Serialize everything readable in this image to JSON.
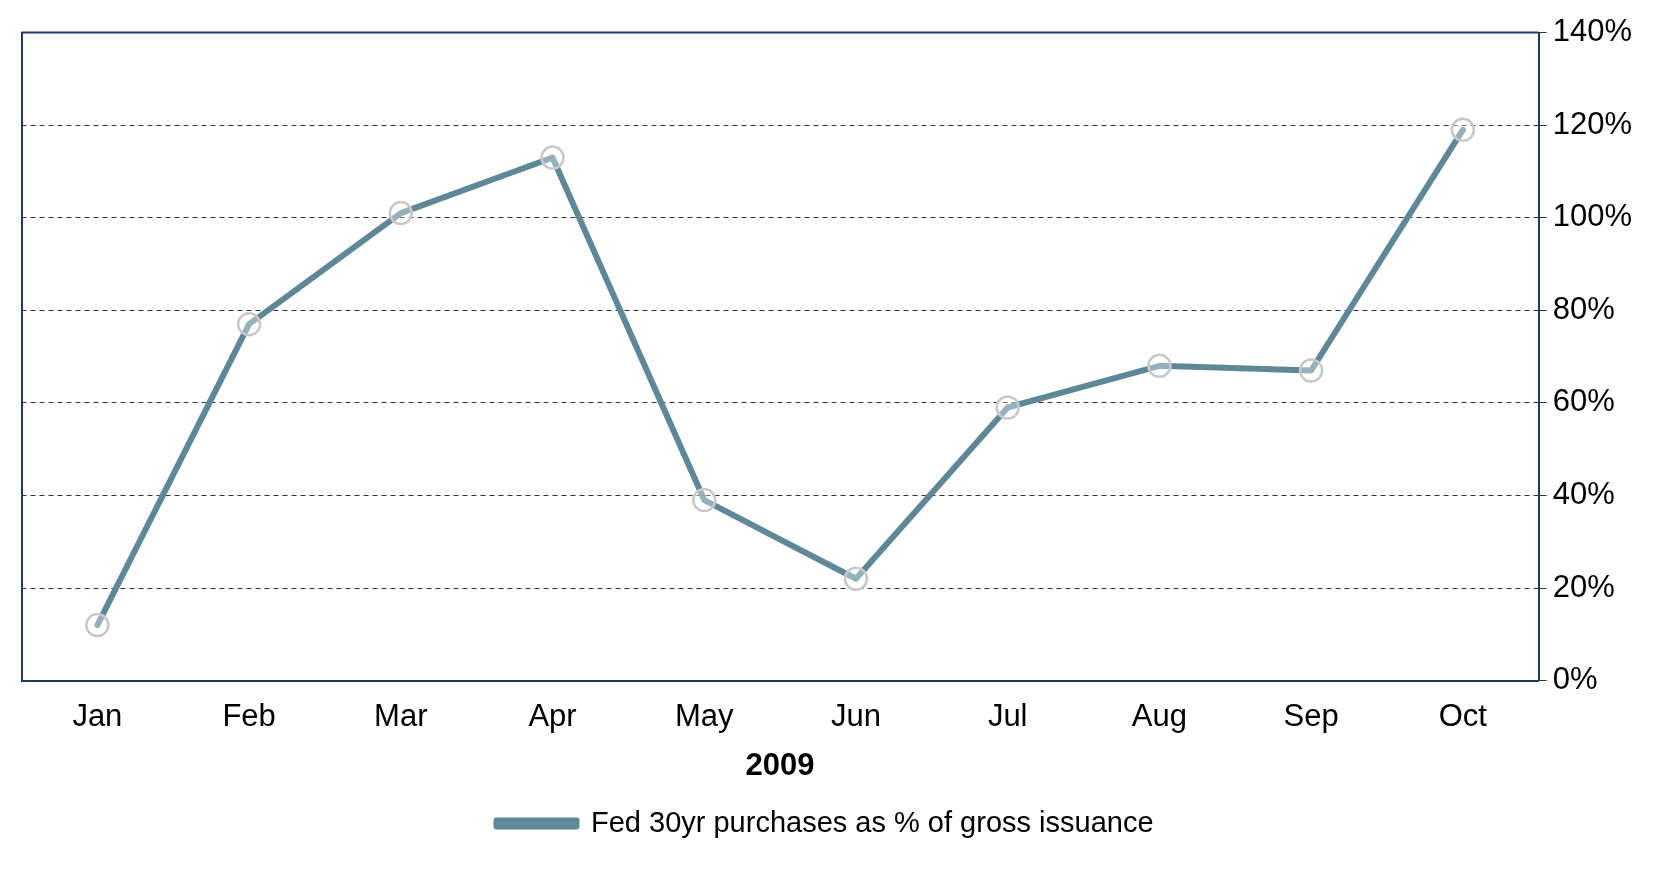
{
  "chart_data": {
    "type": "line",
    "xlabel": "2009",
    "categories": [
      "Jan",
      "Feb",
      "Mar",
      "Apr",
      "May",
      "Jun",
      "Jul",
      "Aug",
      "Sep",
      "Oct"
    ],
    "series": [
      {
        "name": "Fed 30yr purchases as % of gross issuance",
        "color": "#5f8896",
        "values": [
          12,
          77,
          101,
          113,
          39,
          22,
          59,
          68,
          67,
          119
        ]
      }
    ],
    "ylim": [
      0,
      140
    ],
    "yticks": [
      {
        "value": 0,
        "label": "0%"
      },
      {
        "value": 20,
        "label": "20%"
      },
      {
        "value": 40,
        "label": "40%"
      },
      {
        "value": 60,
        "label": "60%"
      },
      {
        "value": 80,
        "label": "80%"
      },
      {
        "value": 100,
        "label": "100%"
      },
      {
        "value": 120,
        "label": "120%"
      },
      {
        "value": 140,
        "label": "140%"
      }
    ],
    "grid": "y",
    "legend": "bottom",
    "marker": "circle",
    "line_style": "solid"
  }
}
